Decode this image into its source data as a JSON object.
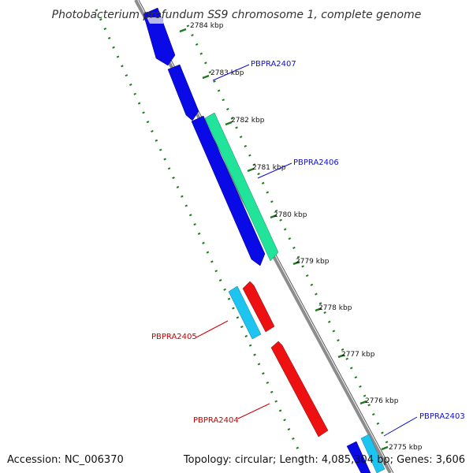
{
  "title": "Photobacterium profundum SS9 chromosome 1, complete genome",
  "footer": {
    "accession": "Accession: NC_006370",
    "summary": "Topology: circular; Length: 4,085,304 bp; Genes: 3,606"
  },
  "ticks": [
    "2784 kbp",
    "2783 kbp",
    "2782 kbp",
    "2781 kbp",
    "2780 kbp",
    "2779 kbp",
    "2778 kbp",
    "2777 kbp",
    "2776 kbp",
    "2775 kbp"
  ],
  "gene_labels": [
    {
      "id": "label-pbpra2407",
      "text": "PBPRA2407",
      "color": "#1010cc"
    },
    {
      "id": "label-pbpra2406",
      "text": "PBPRA2406",
      "color": "#1010cc"
    },
    {
      "id": "label-pbpra2405",
      "text": "PBPRA2405",
      "color": "#cc0000"
    },
    {
      "id": "label-pbpra2404",
      "text": "PBPRA2404",
      "color": "#cc0000"
    },
    {
      "id": "label-pbpra2403",
      "text": "PBPRA2403",
      "color": "#1010cc"
    }
  ],
  "colors": {
    "backbone": "#8c8c8c",
    "tick_marks": "#1e7a1e",
    "forward_gene": "#0a0ae6",
    "rna_gene": "#22e39a",
    "reverse_gene": "#ee1111",
    "pseudo_gene": "#1ec4f0"
  }
}
